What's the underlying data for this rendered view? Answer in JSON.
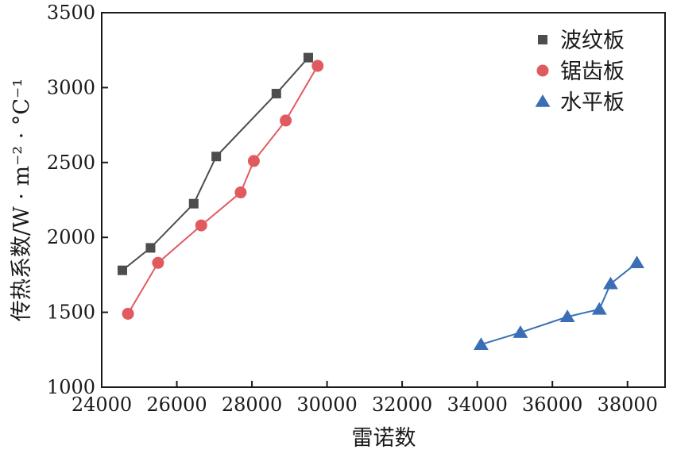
{
  "chart_data": {
    "type": "line",
    "title": "",
    "xlabel": "雷诺数",
    "ylabel": "传热系数/W · m⁻² · °C⁻¹",
    "xlim": [
      24000,
      39000
    ],
    "ylim": [
      1000,
      3500
    ],
    "x_ticks": [
      24000,
      26000,
      28000,
      30000,
      32000,
      34000,
      36000,
      38000
    ],
    "y_ticks": [
      1000,
      1500,
      2000,
      2500,
      3000,
      3500
    ],
    "x_tick_labels": [
      "24000",
      "26000",
      "28000",
      "30000",
      "32000",
      "34000",
      "36000",
      "38000"
    ],
    "y_tick_labels": [
      "1000",
      "1500",
      "2000",
      "2500",
      "3000",
      "3500"
    ],
    "grid": false,
    "legend_position": "top-right",
    "series": [
      {
        "name": "波纹板",
        "marker": "square",
        "color": "#4d4d4d",
        "x": [
          24550,
          25300,
          26450,
          27050,
          28650,
          29500
        ],
        "y": [
          1780,
          1930,
          2225,
          2540,
          2960,
          3200
        ]
      },
      {
        "name": "锯齿板",
        "marker": "circle",
        "color": "#e05a5f",
        "x": [
          24700,
          25500,
          26650,
          27700,
          28050,
          28900,
          29750
        ],
        "y": [
          1490,
          1830,
          2080,
          2300,
          2510,
          2780,
          3145
        ]
      },
      {
        "name": "水平板",
        "marker": "triangle",
        "color": "#3a6fb5",
        "x": [
          34100,
          35150,
          36400,
          37250,
          37550,
          38250
        ],
        "y": [
          1285,
          1365,
          1470,
          1520,
          1690,
          1830
        ]
      }
    ]
  }
}
